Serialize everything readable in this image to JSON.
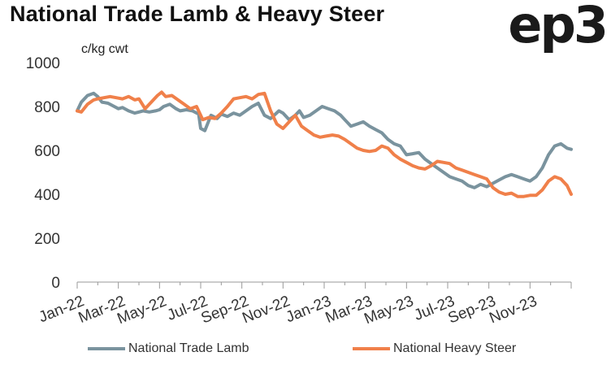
{
  "header": {
    "title": "National Trade Lamb & Heavy Steer",
    "logo": "ep3"
  },
  "chart_data": {
    "type": "line",
    "title": "National Trade Lamb & Heavy Steer",
    "ylabel": "c/kg cwt",
    "xlabel": "",
    "ylim": [
      0,
      1000
    ],
    "yticks": [
      0,
      200,
      400,
      600,
      800,
      1000
    ],
    "xlim": [
      0,
      24
    ],
    "xticks": [
      "Jan-22",
      "Mar-22",
      "May-22",
      "Jul-22",
      "Sep-22",
      "Nov-22",
      "Jan-23",
      "Mar-23",
      "May-23",
      "Jul-23",
      "Sep-23",
      "Nov-23"
    ],
    "grid": false,
    "legend": "bottom",
    "series": [
      {
        "name": "National Trade Lamb",
        "color": "#7a939e",
        "x": [
          0,
          0.2,
          0.5,
          0.8,
          1.0,
          1.2,
          1.5,
          1.8,
          2.0,
          2.2,
          2.5,
          2.8,
          3.0,
          3.2,
          3.5,
          3.8,
          4.0,
          4.2,
          4.5,
          4.8,
          5.0,
          5.3,
          5.6,
          5.9,
          6.0,
          6.2,
          6.5,
          6.8,
          7.0,
          7.3,
          7.6,
          7.9,
          8.2,
          8.5,
          8.8,
          9.1,
          9.4,
          9.8,
          10.0,
          10.3,
          10.6,
          10.8,
          11.0,
          11.3,
          11.6,
          11.9,
          12.2,
          12.5,
          12.8,
          13.0,
          13.3,
          13.6,
          13.9,
          14.2,
          14.5,
          14.8,
          15.1,
          15.4,
          15.7,
          16.0,
          16.3,
          16.6,
          16.9,
          17.2,
          17.5,
          17.8,
          18.1,
          18.4,
          18.7,
          19.0,
          19.3,
          19.6,
          19.9,
          20.2,
          20.5,
          20.8,
          21.1,
          21.4,
          21.7,
          22.0,
          22.3,
          22.6,
          22.9,
          23.2,
          23.5,
          23.8,
          24.0
        ],
        "values": [
          780,
          820,
          850,
          860,
          845,
          820,
          815,
          800,
          790,
          795,
          780,
          770,
          775,
          780,
          775,
          780,
          785,
          800,
          810,
          790,
          780,
          785,
          780,
          765,
          700,
          690,
          760,
          745,
          765,
          755,
          770,
          760,
          780,
          800,
          815,
          760,
          745,
          780,
          770,
          740,
          760,
          780,
          750,
          760,
          780,
          800,
          790,
          780,
          760,
          740,
          710,
          720,
          730,
          710,
          695,
          680,
          650,
          630,
          620,
          580,
          585,
          590,
          560,
          540,
          520,
          500,
          480,
          470,
          460,
          440,
          430,
          445,
          435,
          450,
          465,
          480,
          490,
          480,
          470,
          460,
          480,
          520,
          580,
          620,
          630,
          610,
          605
        ]
      },
      {
        "name": "National Heavy Steer",
        "color": "#f0804a",
        "x": [
          0,
          0.2,
          0.5,
          0.8,
          1.0,
          1.3,
          1.6,
          1.9,
          2.2,
          2.5,
          2.8,
          3.0,
          3.3,
          3.6,
          3.9,
          4.1,
          4.3,
          4.6,
          4.9,
          5.2,
          5.5,
          5.8,
          6.1,
          6.4,
          6.7,
          7.0,
          7.3,
          7.6,
          7.9,
          8.2,
          8.5,
          8.8,
          9.1,
          9.4,
          9.7,
          10.0,
          10.3,
          10.6,
          10.9,
          11.2,
          11.5,
          11.8,
          12.1,
          12.4,
          12.7,
          13.0,
          13.3,
          13.6,
          13.9,
          14.2,
          14.5,
          14.8,
          15.1,
          15.4,
          15.7,
          16.0,
          16.3,
          16.6,
          16.9,
          17.2,
          17.5,
          17.8,
          18.1,
          18.4,
          18.7,
          19.0,
          19.3,
          19.6,
          19.9,
          20.2,
          20.5,
          20.8,
          21.1,
          21.4,
          21.7,
          22.0,
          22.3,
          22.6,
          22.9,
          23.2,
          23.5,
          23.8,
          24.0
        ],
        "values": [
          780,
          775,
          810,
          830,
          835,
          840,
          845,
          840,
          835,
          845,
          830,
          835,
          790,
          820,
          850,
          865,
          845,
          850,
          830,
          810,
          790,
          800,
          740,
          750,
          745,
          770,
          800,
          835,
          840,
          845,
          835,
          855,
          860,
          780,
          720,
          700,
          730,
          760,
          710,
          690,
          670,
          660,
          665,
          670,
          665,
          650,
          630,
          610,
          600,
          595,
          600,
          620,
          610,
          580,
          560,
          545,
          530,
          520,
          515,
          530,
          550,
          545,
          540,
          520,
          510,
          500,
          490,
          480,
          470,
          430,
          410,
          400,
          405,
          390,
          390,
          395,
          395,
          420,
          460,
          480,
          470,
          440,
          400
        ]
      }
    ]
  }
}
